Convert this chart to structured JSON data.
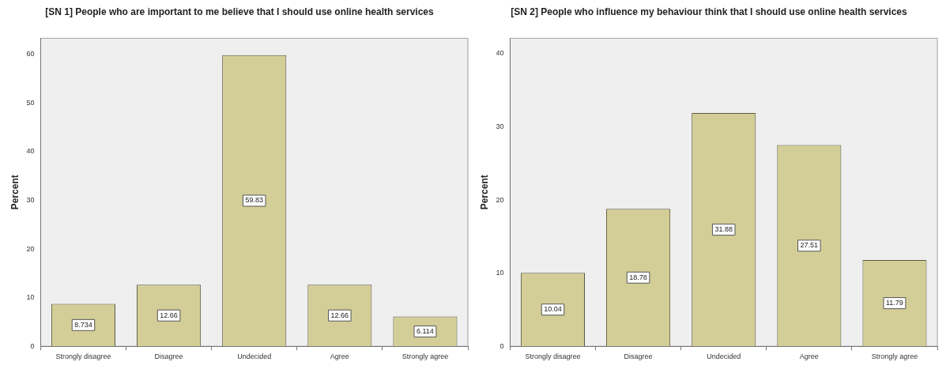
{
  "chart_data": [
    {
      "type": "bar",
      "title": "[SN 1] People who are important to me believe that I should use online health services",
      "ylabel": "Percent",
      "categories": [
        "Strongly disagree",
        "Disagree",
        "Undecided",
        "Agree",
        "Strongly agree"
      ],
      "values": [
        8.734,
        12.66,
        59.83,
        12.66,
        6.114
      ],
      "color": "#d3ce97",
      "ylim": [
        0,
        63.3
      ],
      "yticks": [
        0,
        10,
        20,
        30,
        40,
        50,
        60
      ],
      "grid": false,
      "data_labels": true
    },
    {
      "type": "bar",
      "title": "[SN 2] People who influence my behaviour think that I should use online health services",
      "ylabel": "Percent",
      "categories": [
        "Strongly disagree",
        "Disagree",
        "Undecided",
        "Agree",
        "Strongly agree"
      ],
      "values": [
        10.04,
        18.78,
        31.88,
        27.51,
        11.79
      ],
      "color": "#d3ce97",
      "ylim": [
        0,
        42.1
      ],
      "yticks": [
        0,
        10,
        20,
        30,
        40
      ],
      "grid": false,
      "data_labels": true
    }
  ]
}
